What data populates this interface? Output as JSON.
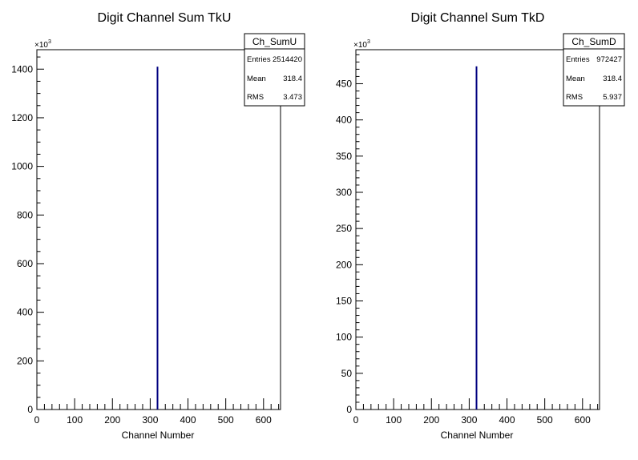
{
  "colors": {
    "histogram_line": "#000080",
    "frame": "#000000"
  },
  "chart_data": [
    {
      "type": "histogram",
      "name": "Ch_SumU",
      "title": "Digit Channel Sum TkU",
      "xlabel": "Channel Number",
      "ylabel": "",
      "y_exponent_label": "×10",
      "y_exponent_power": "3",
      "xlim": [
        0,
        645
      ],
      "ylim": [
        0,
        1480
      ],
      "x_major_ticks": [
        0,
        100,
        200,
        300,
        400,
        500,
        600
      ],
      "x_minor_step": 20,
      "y_major_ticks": [
        0,
        200,
        400,
        600,
        800,
        1000,
        1200,
        1400
      ],
      "y_minor_step": 50,
      "peak": {
        "x": 318.4,
        "value": 1410
      },
      "stats": {
        "entries_label": "Entries",
        "entries": "2514420",
        "mean_label": "Mean",
        "mean": "318.4",
        "rms_label": "RMS",
        "rms": "3.473"
      }
    },
    {
      "type": "histogram",
      "name": "Ch_SumD",
      "title": "Digit Channel Sum TkD",
      "xlabel": "Channel Number",
      "ylabel": "",
      "y_exponent_label": "×10",
      "y_exponent_power": "3",
      "xlim": [
        0,
        645
      ],
      "ylim": [
        0,
        497
      ],
      "x_major_ticks": [
        0,
        100,
        200,
        300,
        400,
        500,
        600
      ],
      "x_minor_step": 20,
      "y_major_ticks": [
        0,
        50,
        100,
        150,
        200,
        250,
        300,
        350,
        400,
        450
      ],
      "y_minor_step": 10,
      "peak": {
        "x": 318.4,
        "value": 474
      },
      "stats": {
        "entries_label": "Entries",
        "entries": "972427",
        "mean_label": "Mean",
        "mean": "318.4",
        "rms_label": "RMS",
        "rms": "5.937"
      }
    }
  ]
}
